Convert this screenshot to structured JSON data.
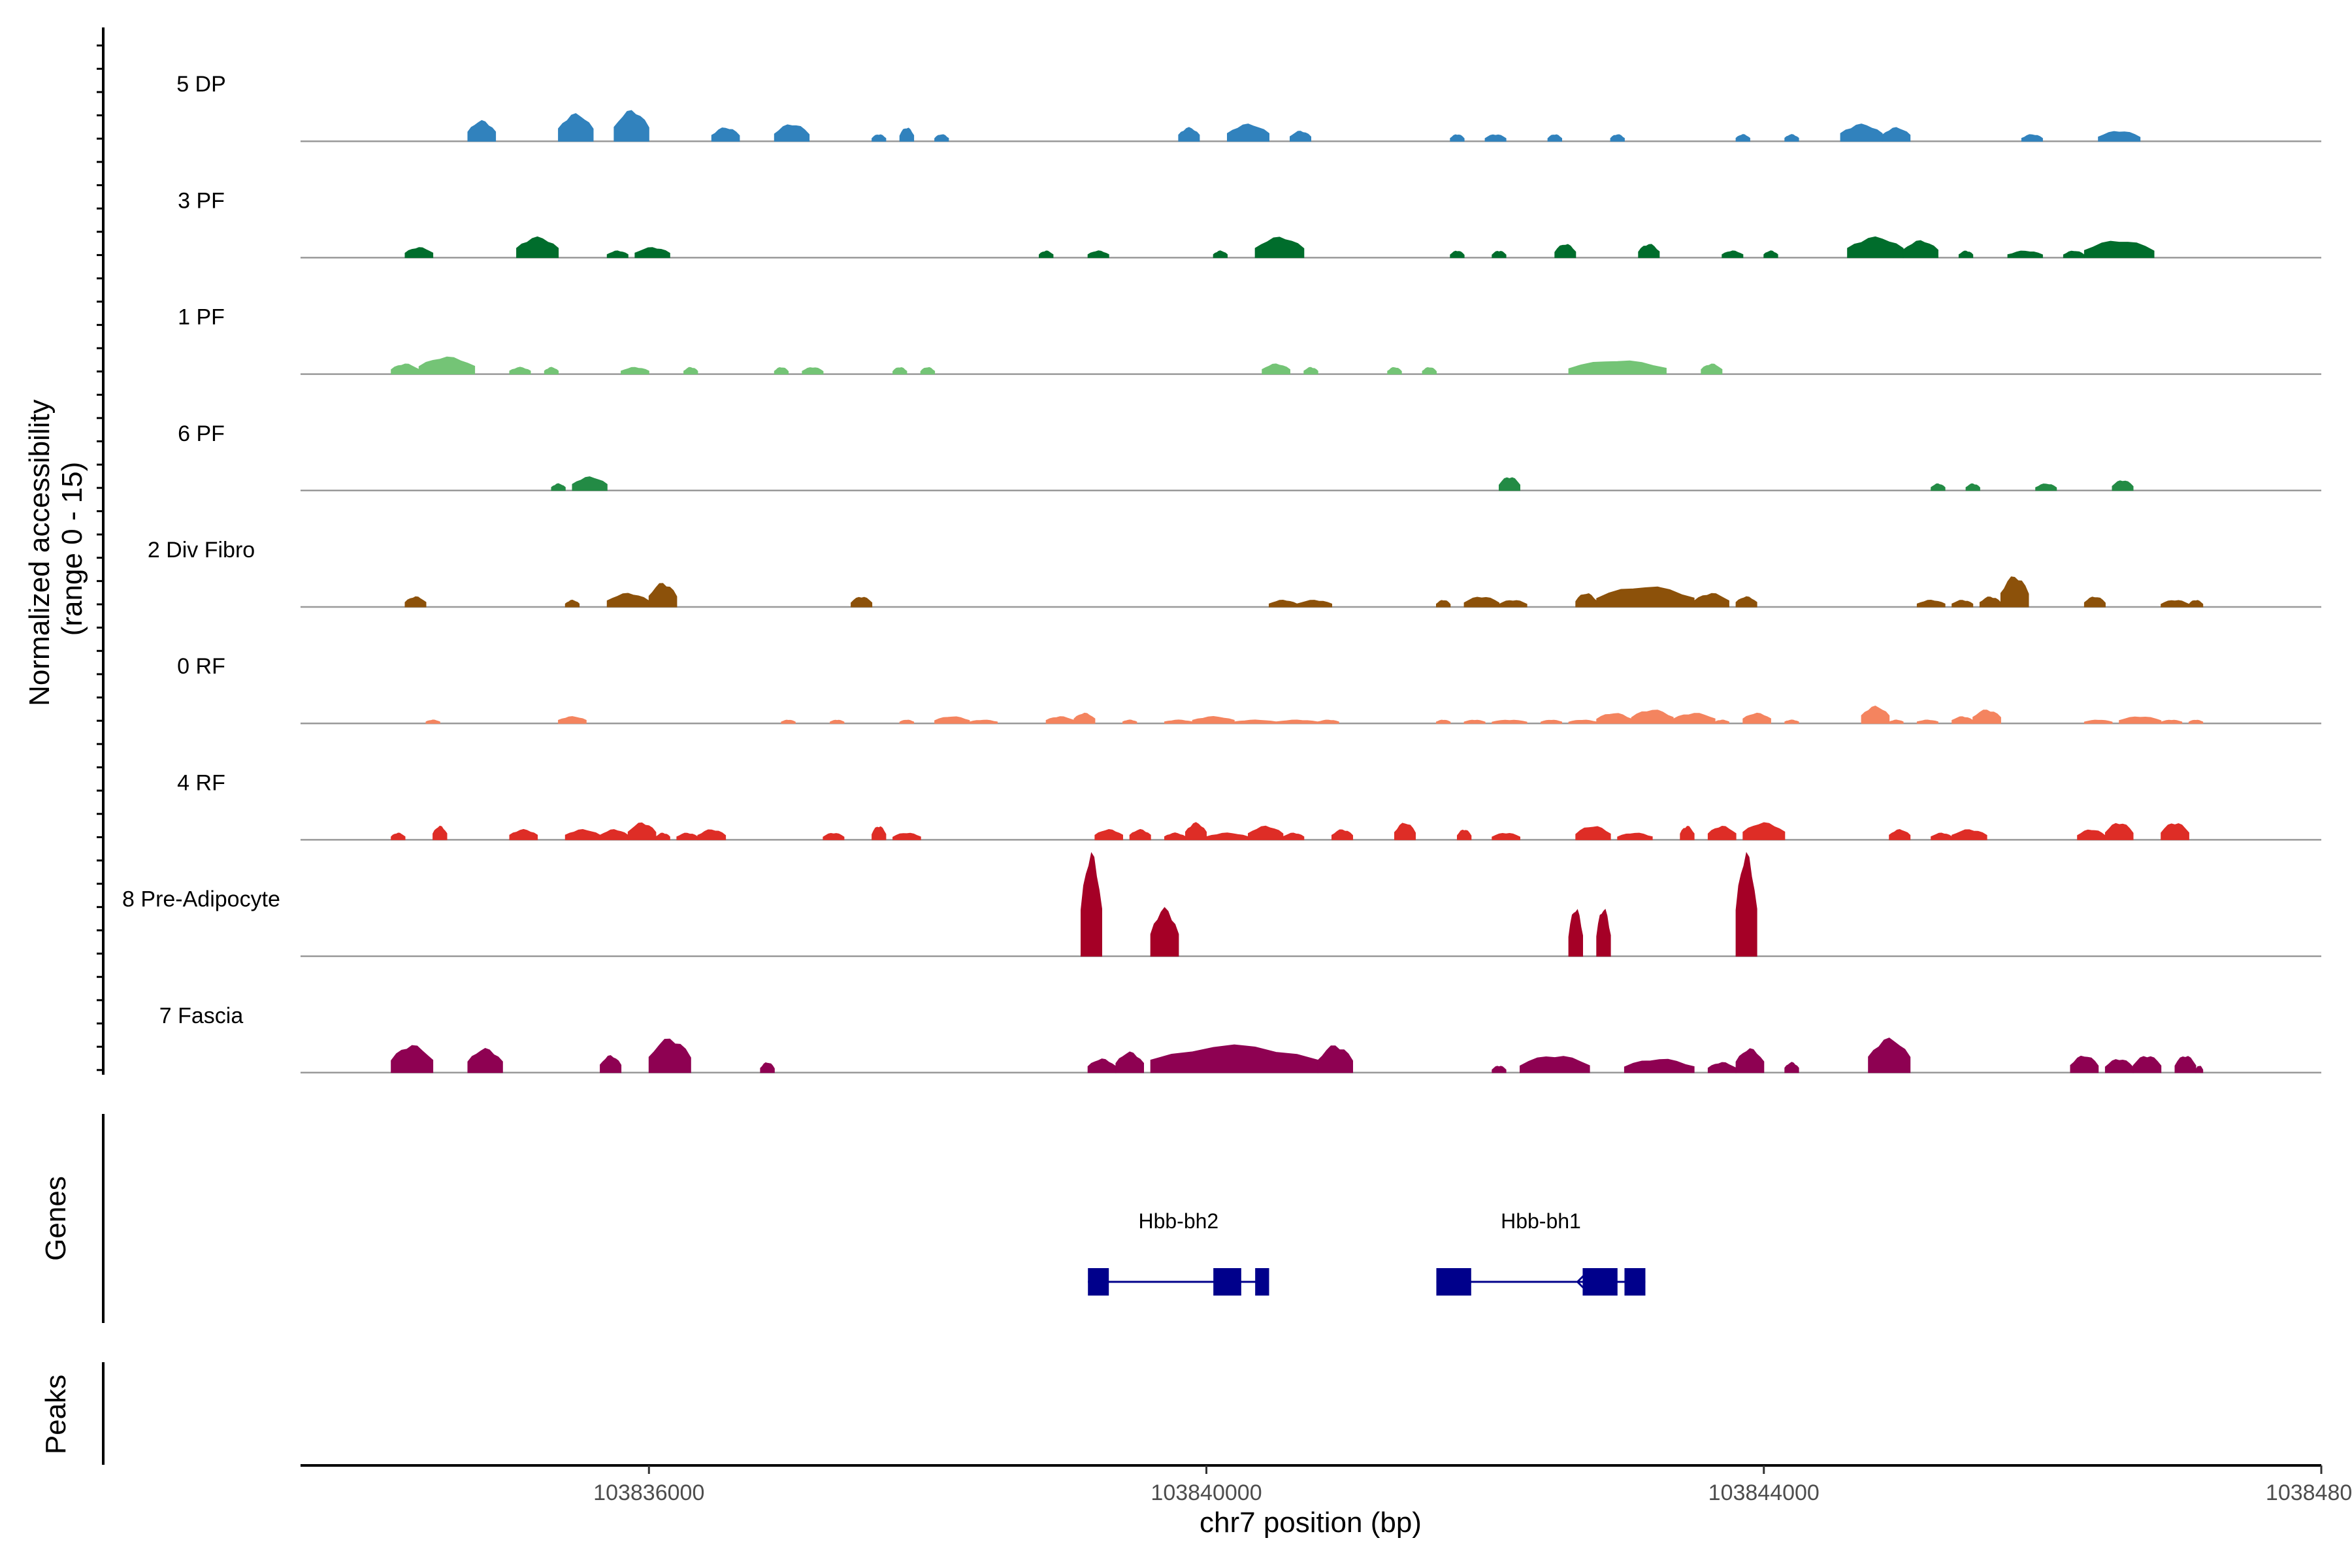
{
  "chart_data": {
    "type": "area",
    "title": "",
    "xlabel": "chr7 position (bp)",
    "ylabel": "Normalized accessibility\n(range 0 - 15)",
    "ylabel_lines": [
      "Normalized accessibility",
      "(range 0 - 15)"
    ],
    "ylim": [
      0,
      15
    ],
    "xlim": [
      103833500,
      103848000
    ],
    "x_ticks": [
      103836000,
      103840000,
      103844000,
      103848000
    ],
    "x_tick_labels": [
      "103836000",
      "103840000",
      "103844000",
      "103848000"
    ],
    "series": [
      {
        "name": "5 DP",
        "color": "#3182bd",
        "peaks": [
          [
            103834700,
            103834900,
            3
          ],
          [
            103835350,
            103835600,
            4
          ],
          [
            103835750,
            103836000,
            4.5
          ],
          [
            103836450,
            103836650,
            2
          ],
          [
            103836900,
            103837150,
            2.5
          ],
          [
            103837600,
            103837700,
            1
          ],
          [
            103837800,
            103837900,
            2
          ],
          [
            103838050,
            103838150,
            1
          ],
          [
            103839800,
            103839950,
            2
          ],
          [
            103840150,
            103840450,
            2.5
          ],
          [
            103840600,
            103840750,
            1.5
          ],
          [
            103841750,
            103841850,
            1
          ],
          [
            103842000,
            103842150,
            1
          ],
          [
            103842450,
            103842550,
            1
          ],
          [
            103842900,
            103843000,
            1
          ],
          [
            103843800,
            103843900,
            1
          ],
          [
            103844150,
            103844250,
            1
          ],
          [
            103844550,
            103844850,
            2.5
          ],
          [
            103844850,
            103845050,
            2
          ],
          [
            103845850,
            103846000,
            1
          ],
          [
            103846400,
            103846700,
            1.5
          ]
        ]
      },
      {
        "name": "3 PF",
        "color": "#006d2c",
        "peaks": [
          [
            103834250,
            103834450,
            1.5
          ],
          [
            103835050,
            103835350,
            3
          ],
          [
            103835700,
            103835850,
            1
          ],
          [
            103835900,
            103836150,
            1.5
          ],
          [
            103838800,
            103838900,
            1
          ],
          [
            103839150,
            103839300,
            1
          ],
          [
            103840050,
            103840150,
            1
          ],
          [
            103840350,
            103840700,
            3
          ],
          [
            103841750,
            103841850,
            1
          ],
          [
            103842050,
            103842150,
            1
          ],
          [
            103842500,
            103842650,
            2
          ],
          [
            103843100,
            103843250,
            2
          ],
          [
            103843700,
            103843850,
            1
          ],
          [
            103844000,
            103844100,
            1
          ],
          [
            103844600,
            103845000,
            3
          ],
          [
            103845000,
            103845250,
            2.5
          ],
          [
            103845400,
            103845500,
            1
          ],
          [
            103845750,
            103846000,
            1
          ],
          [
            103846150,
            103846300,
            1
          ],
          [
            103846300,
            103846800,
            2.5
          ]
        ]
      },
      {
        "name": "1 PF",
        "color": "#74c476",
        "peaks": [
          [
            103834150,
            103834350,
            1.5
          ],
          [
            103834350,
            103834750,
            2.5
          ],
          [
            103835000,
            103835150,
            1
          ],
          [
            103835250,
            103835350,
            1
          ],
          [
            103835800,
            103836000,
            1
          ],
          [
            103836250,
            103836350,
            1
          ],
          [
            103836900,
            103837000,
            1
          ],
          [
            103837100,
            103837250,
            1
          ],
          [
            103837750,
            103837850,
            1
          ],
          [
            103837950,
            103838050,
            1
          ],
          [
            103840400,
            103840600,
            1.5
          ],
          [
            103840700,
            103840800,
            1
          ],
          [
            103841300,
            103841400,
            1
          ],
          [
            103841550,
            103841650,
            1
          ],
          [
            103842600,
            103843300,
            2
          ],
          [
            103843550,
            103843700,
            1.5
          ]
        ]
      },
      {
        "name": "6 PF",
        "color": "#238b45",
        "peaks": [
          [
            103835300,
            103835400,
            1
          ],
          [
            103835450,
            103835700,
            2
          ],
          [
            103842100,
            103842250,
            2
          ],
          [
            103845200,
            103845300,
            1
          ],
          [
            103845450,
            103845550,
            1
          ],
          [
            103845950,
            103846100,
            1
          ],
          [
            103846500,
            103846650,
            1.5
          ]
        ]
      },
      {
        "name": "2 Div Fibro",
        "color": "#8c510a",
        "peaks": [
          [
            103834250,
            103834400,
            1.5
          ],
          [
            103835400,
            103835500,
            1
          ],
          [
            103835700,
            103836000,
            2
          ],
          [
            103836000,
            103836200,
            3.5
          ],
          [
            103837450,
            103837600,
            1.5
          ],
          [
            103840450,
            103840650,
            1
          ],
          [
            103840650,
            103840900,
            1
          ],
          [
            103841650,
            103841750,
            1
          ],
          [
            103841850,
            103842100,
            1.5
          ],
          [
            103842100,
            103842300,
            1
          ],
          [
            103842650,
            103842800,
            2
          ],
          [
            103842800,
            103843500,
            3
          ],
          [
            103843500,
            103843750,
            2
          ],
          [
            103843800,
            103843950,
            1.5
          ],
          [
            103845100,
            103845300,
            1
          ],
          [
            103845350,
            103845500,
            1
          ],
          [
            103845550,
            103845700,
            1.5
          ],
          [
            103845700,
            103845900,
            4.5
          ],
          [
            103846300,
            103846450,
            1.5
          ],
          [
            103846850,
            103847050,
            1
          ],
          [
            103847050,
            103847150,
            1
          ]
        ]
      },
      {
        "name": "0 RF",
        "color": "#f4845f",
        "peaks": [
          [
            103834400,
            103834500,
            0.5
          ],
          [
            103835350,
            103835550,
            1
          ],
          [
            103836950,
            103837050,
            0.5
          ],
          [
            103837300,
            103837400,
            0.5
          ],
          [
            103837800,
            103837900,
            0.5
          ],
          [
            103838050,
            103838300,
            1
          ],
          [
            103838300,
            103838500,
            0.5
          ],
          [
            103838850,
            103839050,
            1
          ],
          [
            103839050,
            103839200,
            1.5
          ],
          [
            103839400,
            103839500,
            0.5
          ],
          [
            103839700,
            103839900,
            0.5
          ],
          [
            103839900,
            103840200,
            1
          ],
          [
            103840200,
            103840500,
            0.5
          ],
          [
            103840500,
            103840800,
            0.5
          ],
          [
            103840800,
            103840950,
            0.5
          ],
          [
            103841650,
            103841750,
            0.5
          ],
          [
            103841850,
            103842000,
            0.5
          ],
          [
            103842050,
            103842300,
            0.5
          ],
          [
            103842400,
            103842550,
            0.5
          ],
          [
            103842600,
            103842800,
            0.5
          ],
          [
            103842800,
            103843050,
            1.5
          ],
          [
            103843050,
            103843350,
            2
          ],
          [
            103843350,
            103843650,
            1.5
          ],
          [
            103843650,
            103843750,
            0.5
          ],
          [
            103843850,
            103844050,
            1.5
          ],
          [
            103844150,
            103844250,
            0.5
          ],
          [
            103844700,
            103844900,
            2.5
          ],
          [
            103844900,
            103845000,
            0.5
          ],
          [
            103845100,
            103845250,
            0.5
          ],
          [
            103845350,
            103845500,
            1
          ],
          [
            103845500,
            103845700,
            2
          ],
          [
            103846300,
            103846500,
            0.5
          ],
          [
            103846550,
            103846850,
            1
          ],
          [
            103846850,
            103847000,
            0.5
          ],
          [
            103847050,
            103847150,
            0.5
          ]
        ]
      },
      {
        "name": "4 RF",
        "color": "#de2d26",
        "peaks": [
          [
            103834150,
            103834250,
            1
          ],
          [
            103834450,
            103834550,
            2
          ],
          [
            103835000,
            103835200,
            1.5
          ],
          [
            103835400,
            103835650,
            1.5
          ],
          [
            103835650,
            103835850,
            1.5
          ],
          [
            103835850,
            103836050,
            2.5
          ],
          [
            103836050,
            103836150,
            1
          ],
          [
            103836200,
            103836350,
            1
          ],
          [
            103836350,
            103836550,
            1.5
          ],
          [
            103837250,
            103837400,
            1
          ],
          [
            103837600,
            103837700,
            2
          ],
          [
            103837750,
            103837950,
            1
          ],
          [
            103839200,
            103839400,
            1.5
          ],
          [
            103839450,
            103839600,
            1.5
          ],
          [
            103839700,
            103839850,
            1
          ],
          [
            103839850,
            103840000,
            2.5
          ],
          [
            103840000,
            103840300,
            1
          ],
          [
            103840300,
            103840550,
            2
          ],
          [
            103840550,
            103840700,
            1
          ],
          [
            103840900,
            103841050,
            1.5
          ],
          [
            103841350,
            103841500,
            2.5
          ],
          [
            103841800,
            103841900,
            1.5
          ],
          [
            103842050,
            103842250,
            1
          ],
          [
            103842650,
            103842900,
            2
          ],
          [
            103842950,
            103843200,
            1
          ],
          [
            103843400,
            103843500,
            2
          ],
          [
            103843600,
            103843800,
            2
          ],
          [
            103843850,
            103844150,
            2.5
          ],
          [
            103844900,
            103845050,
            1.5
          ],
          [
            103845200,
            103845350,
            1
          ],
          [
            103845350,
            103845600,
            1.5
          ],
          [
            103846250,
            103846450,
            1.5
          ],
          [
            103846450,
            103846650,
            2.5
          ],
          [
            103846850,
            103847050,
            2.5
          ]
        ]
      },
      {
        "name": "8 Pre-Adipocyte",
        "color": "#a50026",
        "peaks": [
          [
            103839100,
            103839250,
            15
          ],
          [
            103839600,
            103839800,
            7
          ],
          [
            103842600,
            103842700,
            7
          ],
          [
            103842800,
            103842900,
            7
          ],
          [
            103843800,
            103843950,
            15
          ]
        ]
      },
      {
        "name": "7 Fascia",
        "color": "#8e0152",
        "peaks": [
          [
            103834150,
            103834450,
            4
          ],
          [
            103834700,
            103834950,
            3.5
          ],
          [
            103835650,
            103835800,
            2.5
          ],
          [
            103836000,
            103836300,
            5
          ],
          [
            103836800,
            103836900,
            1.5
          ],
          [
            103839150,
            103839350,
            2
          ],
          [
            103839350,
            103839550,
            3
          ],
          [
            103839600,
            103840800,
            4
          ],
          [
            103840800,
            103841050,
            4
          ],
          [
            103842050,
            103842150,
            1
          ],
          [
            103842250,
            103842750,
            2.5
          ],
          [
            103843000,
            103843500,
            2
          ],
          [
            103843600,
            103843800,
            1.5
          ],
          [
            103843800,
            103844000,
            3.5
          ],
          [
            103844150,
            103844250,
            1.5
          ],
          [
            103844750,
            103845050,
            5
          ],
          [
            103846200,
            103846400,
            2.5
          ],
          [
            103846450,
            103846650,
            2
          ],
          [
            103846650,
            103846850,
            2.5
          ],
          [
            103846950,
            103847100,
            2.5
          ],
          [
            103847100,
            103847150,
            1
          ]
        ]
      }
    ],
    "genes": [
      {
        "name": "Hbb-bh2",
        "start": 103839150,
        "end": 103840450,
        "exons": [
          [
            103839150,
            103839300
          ],
          [
            103840050,
            103840250
          ],
          [
            103840350,
            103840450
          ]
        ],
        "strand": "+"
      },
      {
        "name": "Hbb-bh1",
        "start": 103841650,
        "end": 103843150,
        "exons": [
          [
            103841650,
            103841900
          ],
          [
            103842700,
            103842950
          ],
          [
            103843000,
            103843150
          ]
        ],
        "strand": "-"
      }
    ],
    "panel_titles": {
      "genes": "Genes",
      "peaks": "Peaks"
    }
  }
}
